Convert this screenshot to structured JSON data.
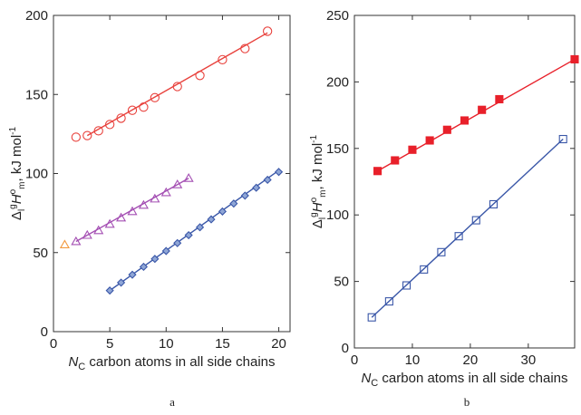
{
  "chart_data": [
    {
      "panel_label": "a",
      "type": "scatter",
      "xlim": [
        0,
        21
      ],
      "ylim": [
        0,
        200
      ],
      "xticks": [
        0,
        5,
        10,
        15,
        20
      ],
      "yticks": [
        0,
        50,
        100,
        150,
        200
      ],
      "xlabel": {
        "main": "N",
        "sub": "C",
        "rest": " carbon atoms in all side chains"
      },
      "ylabel": {
        "pre": "Δ",
        "sub1": "l",
        "sup1": "g",
        "var": "H",
        "sup2": "o",
        "sub2": "m",
        "rest": ", kJ mol",
        "sup3": "-1"
      },
      "grid": false,
      "series": [
        {
          "marker": "circle",
          "color": "#e8413c",
          "fill": "none",
          "x": [
            2,
            3,
            4,
            5,
            6,
            7,
            8,
            9,
            11,
            13,
            15,
            17,
            19
          ],
          "y": [
            123,
            124,
            127,
            131,
            135,
            140,
            142,
            148,
            155,
            162,
            172,
            179,
            190
          ],
          "fit": [
            [
              3,
              124
            ],
            [
              19,
              189
            ]
          ]
        },
        {
          "marker": "triangle",
          "color": "#a44fb3",
          "fill": "none",
          "x": [
            2,
            3,
            4,
            5,
            6,
            7,
            8,
            9,
            10,
            11,
            12
          ],
          "y": [
            57,
            61,
            64,
            68,
            72,
            76,
            80,
            84,
            88,
            93,
            97
          ],
          "fit": [
            [
              2,
              57
            ],
            [
              12,
              97
            ]
          ]
        },
        {
          "marker": "triangle",
          "color": "#f29a3f",
          "fill": "none",
          "x": [
            1
          ],
          "y": [
            55
          ]
        },
        {
          "marker": "diamond",
          "color": "#3a57a8",
          "fill": "#8fa6d6",
          "x": [
            5,
            6,
            7,
            8,
            9,
            10,
            11,
            12,
            13,
            14,
            15,
            16,
            17,
            18,
            19,
            20
          ],
          "y": [
            26,
            31,
            36,
            41,
            46,
            51,
            56,
            61,
            66,
            71,
            76,
            81,
            86,
            91,
            96,
            101
          ],
          "fit": [
            [
              5,
              26
            ],
            [
              20,
              102
            ]
          ]
        }
      ]
    },
    {
      "panel_label": "b",
      "type": "scatter",
      "xlim": [
        0,
        38
      ],
      "ylim": [
        0,
        250
      ],
      "xticks": [
        0,
        10,
        20,
        30
      ],
      "yticks": [
        0,
        50,
        100,
        150,
        200,
        250
      ],
      "xlabel": {
        "main": "N",
        "sub": "C",
        "rest": " carbon atoms in all side chains"
      },
      "ylabel": {
        "pre": "Δ",
        "sub1": "l",
        "sup1": "g",
        "var": "H",
        "sup2": "o",
        "sub2": "m",
        "rest": ", kJ mol",
        "sup3": "-1"
      },
      "grid": false,
      "series": [
        {
          "marker": "square",
          "color": "#e8202a",
          "fill": "#e8202a",
          "x": [
            4,
            7,
            10,
            13,
            16,
            19,
            22,
            25,
            38
          ],
          "y": [
            133,
            141,
            149,
            156,
            164,
            171,
            179,
            187,
            217
          ],
          "fit": [
            [
              4,
              133
            ],
            [
              38,
              217
            ]
          ]
        },
        {
          "marker": "square",
          "color": "#3a57a8",
          "fill": "none",
          "x": [
            3,
            6,
            9,
            12,
            15,
            18,
            21,
            24,
            36
          ],
          "y": [
            23,
            35,
            47,
            59,
            72,
            84,
            96,
            108,
            157
          ],
          "fit": [
            [
              3,
              23
            ],
            [
              36,
              157
            ]
          ]
        }
      ]
    }
  ]
}
